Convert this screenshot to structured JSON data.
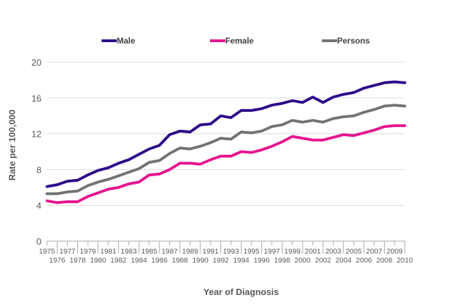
{
  "chart_data": {
    "type": "line",
    "title": "",
    "xlabel": "Year of Diagnosis",
    "ylabel": "Rate per 100,000",
    "ylim": [
      0,
      20
    ],
    "yticks": [
      0,
      4,
      8,
      12,
      16,
      20
    ],
    "grid": "horizontal",
    "legend_position": "top",
    "x": [
      "1975",
      "1976",
      "1977",
      "1978",
      "1979",
      "1980",
      "1981",
      "1982",
      "1983",
      "1984",
      "1985",
      "1986",
      "1987",
      "1988",
      "1989",
      "1990",
      "1991",
      "1992",
      "1993",
      "1994",
      "1995",
      "1996",
      "1997",
      "1998",
      "1999",
      "2000",
      "2001",
      "2002",
      "2003",
      "2004",
      "2005",
      "2006",
      "2007",
      "2008",
      "2009",
      "2010"
    ],
    "series": [
      {
        "name": "Male",
        "color": "#2e0a8a",
        "values": [
          6.1,
          6.3,
          6.7,
          6.8,
          7.4,
          7.9,
          8.2,
          8.7,
          9.1,
          9.7,
          10.3,
          10.7,
          11.9,
          12.3,
          12.2,
          13.0,
          13.1,
          14.0,
          13.8,
          14.6,
          14.6,
          14.8,
          15.2,
          15.4,
          15.7,
          15.5,
          16.1,
          15.5,
          16.1,
          16.4,
          16.6,
          17.1,
          17.4,
          17.7,
          17.8,
          17.7
        ]
      },
      {
        "name": "Female",
        "color": "#e6158f",
        "values": [
          4.5,
          4.3,
          4.4,
          4.4,
          5.0,
          5.4,
          5.8,
          6.0,
          6.4,
          6.6,
          7.4,
          7.5,
          8.0,
          8.7,
          8.7,
          8.6,
          9.1,
          9.5,
          9.5,
          10.0,
          9.9,
          10.2,
          10.6,
          11.1,
          11.7,
          11.5,
          11.3,
          11.3,
          11.6,
          11.9,
          11.8,
          12.1,
          12.4,
          12.8,
          12.9,
          12.9
        ]
      },
      {
        "name": "Persons",
        "color": "#737373",
        "values": [
          5.3,
          5.3,
          5.5,
          5.6,
          6.2,
          6.6,
          6.9,
          7.3,
          7.7,
          8.1,
          8.8,
          9.0,
          9.8,
          10.4,
          10.3,
          10.6,
          11.0,
          11.5,
          11.4,
          12.2,
          12.1,
          12.3,
          12.8,
          13.0,
          13.5,
          13.3,
          13.5,
          13.3,
          13.7,
          13.9,
          14.0,
          14.4,
          14.7,
          15.1,
          15.2,
          15.1
        ]
      }
    ]
  }
}
